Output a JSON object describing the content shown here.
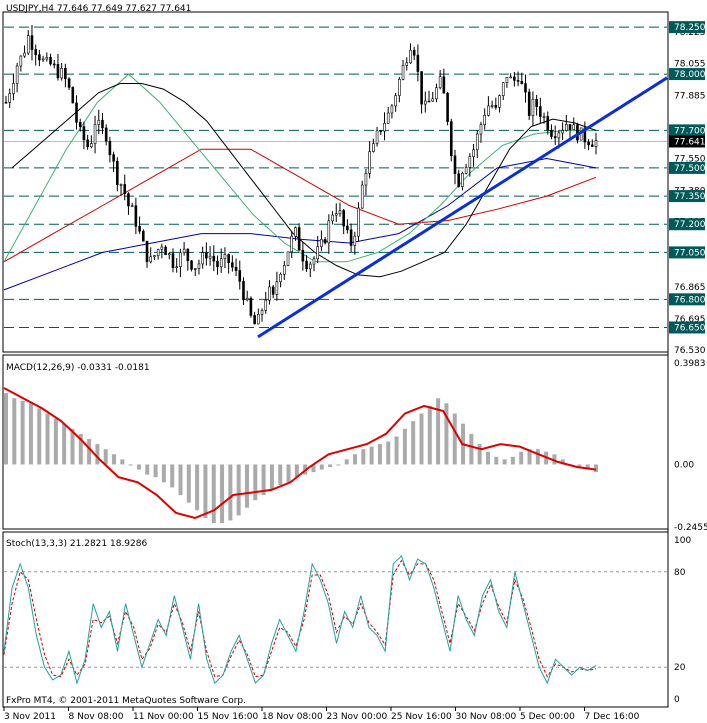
{
  "window": {
    "symbol_header": "USDJPY,H4  77.646 77.649 77.627 77.641"
  },
  "footer": {
    "copyright": "FxPro MT4, © 2001-2011 MetaQuotes Software Corp."
  },
  "colors": {
    "background": "#ffffff",
    "candle": "#000000",
    "ma_black": "#000000",
    "ma_green": "#3cb371",
    "ma_red": "#cc0000",
    "ma_blue": "#0000aa",
    "trendline": "#0a2fd6",
    "level_line": "#005a5a",
    "macd_hist": "#aaaaaa",
    "macd_signal": "#dd0000",
    "stoch_main": "#20a0a0",
    "stoch_signal": "#cc0000",
    "price_label_bg": "#000000",
    "price_label_text": "#ffffff"
  },
  "chart_data": [
    {
      "type": "candlestick",
      "title": "USDJPY,H4",
      "ohlc_readout": [
        77.646,
        77.649,
        77.627,
        77.641
      ],
      "ylim": [
        76.53,
        78.32
      ],
      "y_tick_labels": [
        "78.225",
        "78.055",
        "77.885",
        "77.550",
        "77.380",
        "77.215",
        "77.045",
        "76.865",
        "76.695",
        "76.530"
      ],
      "horizontal_levels": [
        78.25,
        78.0,
        77.7,
        77.5,
        77.35,
        77.2,
        77.05,
        76.8,
        76.65
      ],
      "horizontal_level_labels": [
        "78.250",
        "78.000",
        "77.700",
        "77.500",
        "77.350",
        "77.200",
        "77.050",
        "76.800",
        "76.650"
      ],
      "current_price": 77.641,
      "current_price_label": "77.641",
      "x_labels": [
        "3 Nov 2011",
        "8 Nov 08:00",
        "11 Nov 00:00",
        "15 Nov 16:00",
        "18 Nov 08:00",
        "23 Nov 00:00",
        "25 Nov 16:00",
        "30 Nov 08:00",
        "5 Dec 00:00",
        "7 Dec 16:00"
      ],
      "close_path": [
        77.85,
        77.95,
        78.05,
        78.1,
        78.2,
        78.15,
        78.1,
        78.05,
        78.05,
        78.02,
        78.0,
        77.95,
        77.85,
        77.7,
        77.65,
        77.6,
        77.75,
        77.7,
        77.68,
        77.55,
        77.45,
        77.4,
        77.3,
        77.25,
        77.15,
        77.05,
        77.0,
        77.05,
        77.1,
        77.05,
        77.0,
        77.02,
        77.05,
        77.0,
        76.98,
        77.0,
        77.05,
        77.02,
        76.98,
        77.0,
        77.0,
        76.95,
        76.9,
        76.8,
        76.7,
        76.65,
        76.75,
        76.85,
        76.8,
        76.95,
        77.0,
        77.1,
        77.15,
        77.05,
        77.0,
        77.0,
        77.05,
        77.1,
        77.2,
        77.3,
        77.25,
        77.15,
        77.1,
        77.2,
        77.4,
        77.55,
        77.6,
        77.7,
        77.75,
        77.8,
        77.9,
        78.0,
        78.1,
        78.2,
        78.0,
        77.8,
        77.85,
        77.9,
        77.95,
        77.85,
        77.6,
        77.4,
        77.5,
        77.55,
        77.6,
        77.7,
        77.8,
        77.85,
        77.8,
        77.9,
        78.0,
        77.95,
        78.0,
        77.9,
        77.8,
        77.85,
        77.8,
        77.75,
        77.7,
        77.7,
        77.72,
        77.75,
        77.7,
        77.68,
        77.66,
        77.65,
        77.64
      ],
      "ma_black": [
        77.5,
        77.6,
        77.7,
        77.8,
        77.9,
        77.95,
        77.95,
        77.92,
        77.85,
        77.75,
        77.6,
        77.45,
        77.3,
        77.15,
        77.05,
        76.98,
        76.93,
        76.92,
        76.95,
        77.0,
        77.05,
        77.2,
        77.4,
        77.6,
        77.72,
        77.76,
        77.74,
        77.7
      ],
      "ma_green": [
        77.0,
        77.3,
        77.6,
        77.85,
        78.0,
        77.85,
        77.65,
        77.45,
        77.25,
        77.1,
        77.0,
        77.0,
        77.05,
        77.15,
        77.3,
        77.48,
        77.62,
        77.68,
        77.7,
        77.7
      ],
      "ma_red": [
        77.0,
        77.15,
        77.3,
        77.45,
        77.6,
        77.6,
        77.45,
        77.3,
        77.2,
        77.22,
        77.28,
        77.35,
        77.45
      ],
      "ma_blue": [
        76.85,
        76.95,
        77.05,
        77.1,
        77.15,
        77.15,
        77.12,
        77.1,
        77.15,
        77.3,
        77.5,
        77.55,
        77.5
      ],
      "trendline": {
        "from": 76.6,
        "to": 77.98
      }
    },
    {
      "type": "histogram+line",
      "title": "MACD(12,26,9) -0.0331 -0.0181",
      "ylim": [
        -0.2455,
        0.3983
      ],
      "y_tick_labels": [
        "0.3983",
        "0.00",
        "-0.2455"
      ],
      "histogram_values": [
        0.28,
        0.26,
        0.25,
        0.24,
        0.22,
        0.2,
        0.18,
        0.16,
        0.14,
        0.12,
        0.1,
        0.08,
        0.06,
        0.04,
        0.02,
        0.0,
        -0.02,
        -0.04,
        -0.05,
        -0.07,
        -0.09,
        -0.12,
        -0.15,
        -0.18,
        -0.21,
        -0.23,
        -0.23,
        -0.22,
        -0.2,
        -0.17,
        -0.14,
        -0.12,
        -0.1,
        -0.08,
        -0.07,
        -0.05,
        -0.04,
        -0.03,
        -0.02,
        -0.01,
        0.0,
        0.02,
        0.04,
        0.06,
        0.07,
        0.08,
        0.09,
        0.11,
        0.14,
        0.17,
        0.2,
        0.23,
        0.26,
        0.24,
        0.2,
        0.16,
        0.12,
        0.08,
        0.05,
        0.03,
        0.02,
        0.03,
        0.05,
        0.06,
        0.06,
        0.05,
        0.04,
        0.02,
        0.0,
        -0.01,
        -0.02,
        -0.03
      ],
      "signal_line": [
        0.3,
        0.26,
        0.22,
        0.17,
        0.1,
        0.02,
        -0.05,
        -0.07,
        -0.12,
        -0.19,
        -0.21,
        -0.18,
        -0.12,
        -0.11,
        -0.1,
        -0.07,
        -0.01,
        0.04,
        0.06,
        0.08,
        0.12,
        0.2,
        0.23,
        0.21,
        0.08,
        0.06,
        0.08,
        0.07,
        0.04,
        0.01,
        -0.01,
        -0.02
      ]
    },
    {
      "type": "line",
      "title": "Stoch(13,3,3) 21.2821 18.9286",
      "ylim": [
        0,
        100
      ],
      "y_tick_labels": [
        "100",
        "80",
        "20",
        "0"
      ],
      "levels": [
        80,
        20
      ],
      "main": [
        30,
        70,
        85,
        70,
        40,
        20,
        12,
        15,
        30,
        10,
        25,
        60,
        45,
        55,
        30,
        60,
        40,
        20,
        35,
        50,
        40,
        65,
        45,
        25,
        60,
        25,
        10,
        15,
        30,
        40,
        25,
        10,
        15,
        35,
        50,
        40,
        30,
        55,
        85,
        75,
        60,
        35,
        55,
        45,
        65,
        45,
        40,
        30,
        85,
        90,
        75,
        88,
        85,
        70,
        50,
        30,
        65,
        50,
        40,
        65,
        75,
        55,
        45,
        80,
        60,
        40,
        20,
        10,
        25,
        20,
        15,
        20,
        18,
        21
      ],
      "signal": [
        28,
        60,
        80,
        75,
        50,
        28,
        15,
        14,
        25,
        15,
        22,
        50,
        48,
        52,
        35,
        55,
        45,
        25,
        32,
        47,
        42,
        60,
        48,
        30,
        55,
        30,
        14,
        15,
        27,
        37,
        28,
        14,
        15,
        30,
        45,
        42,
        33,
        50,
        78,
        78,
        65,
        42,
        52,
        47,
        60,
        48,
        42,
        34,
        78,
        87,
        78,
        85,
        85,
        75,
        55,
        35,
        60,
        52,
        43,
        60,
        72,
        58,
        48,
        75,
        63,
        45,
        25,
        14,
        22,
        20,
        17,
        19,
        18,
        19
      ]
    }
  ]
}
